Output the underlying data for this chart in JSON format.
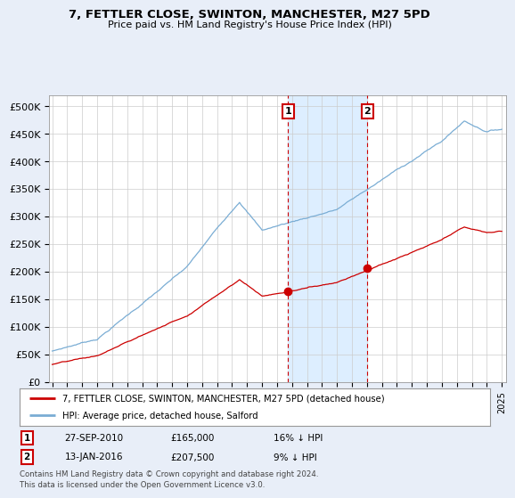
{
  "title": "7, FETTLER CLOSE, SWINTON, MANCHESTER, M27 5PD",
  "subtitle": "Price paid vs. HM Land Registry's House Price Index (HPI)",
  "ylabel_ticks": [
    "£0",
    "£50K",
    "£100K",
    "£150K",
    "£200K",
    "£250K",
    "£300K",
    "£350K",
    "£400K",
    "£450K",
    "£500K"
  ],
  "ytick_vals": [
    0,
    50000,
    100000,
    150000,
    200000,
    250000,
    300000,
    350000,
    400000,
    450000,
    500000
  ],
  "ylim": [
    0,
    520000
  ],
  "xlim_start": 1994.8,
  "xlim_end": 2025.3,
  "hpi_color": "#7aadd4",
  "price_color": "#cc0000",
  "shade_color": "#ddeeff",
  "sale1_date": 2010.74,
  "sale1_price": 165000,
  "sale2_date": 2016.04,
  "sale2_price": 207500,
  "legend_label1": "7, FETTLER CLOSE, SWINTON, MANCHESTER, M27 5PD (detached house)",
  "legend_label2": "HPI: Average price, detached house, Salford",
  "table_row1": [
    "1",
    "27-SEP-2010",
    "£165,000",
    "16% ↓ HPI"
  ],
  "table_row2": [
    "2",
    "13-JAN-2016",
    "£207,500",
    "9% ↓ HPI"
  ],
  "footer": "Contains HM Land Registry data © Crown copyright and database right 2024.\nThis data is licensed under the Open Government Licence v3.0.",
  "background_color": "#e8eef8",
  "plot_bg_color": "#ffffff",
  "grid_color": "#cccccc",
  "fig_width": 6.0,
  "fig_height": 5.6
}
